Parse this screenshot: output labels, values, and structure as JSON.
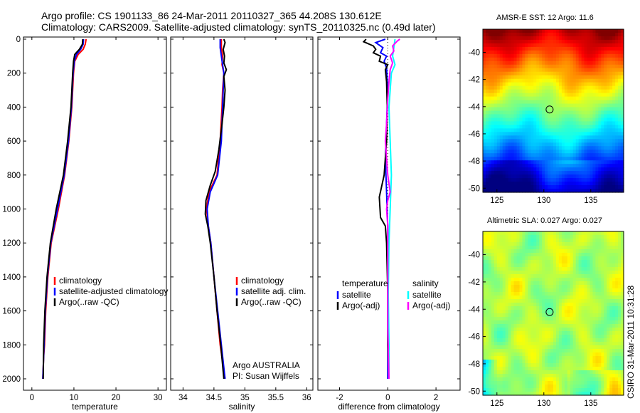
{
  "header": {
    "line1": "Argo profile: CS 1901133_86 24-Mar-2011 20110327_365 44.208S 130.612E",
    "line2": "Climatology: CARS2009. Satellite-adjusted climatology: synTS_20110325.nc (0.49d later)"
  },
  "timestamp": "CSIRO 31-Mar-2011 10:31:28",
  "colors": {
    "red": "#ff0000",
    "blue": "#0000ff",
    "black": "#000000",
    "cyan": "#00ffff",
    "magenta": "#ff00ff"
  },
  "chart_data": [
    {
      "type": "line",
      "panel": "temperature",
      "xlabel": "temperature",
      "xlim": [
        -2,
        32
      ],
      "ylim": [
        0,
        2100
      ],
      "y_reversed": true,
      "xticks": [
        "0",
        "10",
        "20",
        "30"
      ],
      "yticks": [
        "0",
        "200",
        "400",
        "600",
        "800",
        "1000",
        "1200",
        "1400",
        "1600",
        "1800",
        "2000"
      ],
      "legend": [
        "climatology",
        "satellite-adjusted climatology",
        "Argo(..raw -QC)"
      ],
      "series": [
        {
          "name": "climatology",
          "color": "red",
          "points": [
            [
              12.9,
              0
            ],
            [
              12.7,
              30
            ],
            [
              12.2,
              60
            ],
            [
              11.0,
              90
            ],
            [
              10.2,
              130
            ],
            [
              9.9,
              200
            ],
            [
              9.5,
              400
            ],
            [
              8.8,
              600
            ],
            [
              7.8,
              800
            ],
            [
              6.3,
              1000
            ],
            [
              4.6,
              1200
            ],
            [
              3.8,
              1400
            ],
            [
              3.3,
              1600
            ],
            [
              3.0,
              1800
            ],
            [
              2.8,
              1870
            ],
            [
              2.6,
              2000
            ]
          ]
        },
        {
          "name": "satellite-adjusted climatology",
          "color": "blue",
          "points": [
            [
              12.3,
              0
            ],
            [
              12.2,
              30
            ],
            [
              11.6,
              60
            ],
            [
              10.6,
              90
            ],
            [
              10.1,
              130
            ],
            [
              9.8,
              200
            ],
            [
              9.4,
              400
            ],
            [
              8.7,
              600
            ],
            [
              7.7,
              800
            ],
            [
              6.1,
              1000
            ],
            [
              4.5,
              1200
            ],
            [
              3.7,
              1400
            ],
            [
              3.2,
              1600
            ],
            [
              2.9,
              1800
            ],
            [
              2.6,
              2000
            ]
          ]
        },
        {
          "name": "Argo(..raw -QC)",
          "color": "black",
          "points": [
            [
              12.1,
              0
            ],
            [
              12.0,
              30
            ],
            [
              11.3,
              60
            ],
            [
              10.2,
              90
            ],
            [
              9.9,
              130
            ],
            [
              9.7,
              200
            ],
            [
              9.3,
              400
            ],
            [
              8.5,
              600
            ],
            [
              7.5,
              800
            ],
            [
              5.8,
              1000
            ],
            [
              4.4,
              1200
            ],
            [
              3.6,
              1400
            ],
            [
              3.1,
              1600
            ],
            [
              2.8,
              1800
            ],
            [
              2.7,
              2000
            ]
          ]
        }
      ]
    },
    {
      "type": "line",
      "panel": "salinity",
      "xlabel": "salinity",
      "xlim": [
        33.8,
        36.1
      ],
      "ylim": [
        0,
        2100
      ],
      "y_reversed": true,
      "xticks": [
        "34",
        "34.5",
        "35",
        "35.5",
        "36"
      ],
      "legend": [
        "climatology",
        "satellite adj. clim.",
        "Argo(..raw -QC)"
      ],
      "annotation": [
        "Argo AUSTRALIA",
        "PI: Susan Wijffels"
      ],
      "series": [
        {
          "name": "climatology",
          "color": "red",
          "points": [
            [
              34.62,
              0
            ],
            [
              34.62,
              50
            ],
            [
              34.64,
              100
            ],
            [
              34.63,
              150
            ],
            [
              34.66,
              200
            ],
            [
              34.64,
              300
            ],
            [
              34.63,
              400
            ],
            [
              34.6,
              600
            ],
            [
              34.55,
              800
            ],
            [
              34.42,
              900
            ],
            [
              34.38,
              1000
            ],
            [
              34.41,
              1100
            ],
            [
              34.45,
              1200
            ],
            [
              34.5,
              1400
            ],
            [
              34.55,
              1600
            ],
            [
              34.6,
              1800
            ],
            [
              34.68,
              2000
            ]
          ]
        },
        {
          "name": "satellite adj. clim.",
          "color": "blue",
          "points": [
            [
              34.6,
              0
            ],
            [
              34.6,
              50
            ],
            [
              34.62,
              100
            ],
            [
              34.64,
              150
            ],
            [
              34.66,
              200
            ],
            [
              34.65,
              300
            ],
            [
              34.64,
              400
            ],
            [
              34.62,
              600
            ],
            [
              34.56,
              800
            ],
            [
              34.44,
              900
            ],
            [
              34.39,
              1000
            ],
            [
              34.41,
              1100
            ],
            [
              34.45,
              1200
            ],
            [
              34.5,
              1400
            ],
            [
              34.56,
              1600
            ],
            [
              34.62,
              1800
            ],
            [
              34.68,
              2000
            ]
          ]
        },
        {
          "name": "Argo(..raw -QC)",
          "color": "black",
          "points": [
            [
              34.66,
              0
            ],
            [
              34.68,
              20
            ],
            [
              34.65,
              60
            ],
            [
              34.67,
              100
            ],
            [
              34.66,
              140
            ],
            [
              34.7,
              180
            ],
            [
              34.66,
              220
            ],
            [
              34.68,
              300
            ],
            [
              34.66,
              400
            ],
            [
              34.63,
              500
            ],
            [
              34.58,
              650
            ],
            [
              34.52,
              780
            ],
            [
              34.44,
              860
            ],
            [
              34.37,
              950
            ],
            [
              34.36,
              1030
            ],
            [
              34.4,
              1100
            ],
            [
              34.44,
              1200
            ],
            [
              34.5,
              1400
            ],
            [
              34.55,
              1600
            ],
            [
              34.61,
              1800
            ],
            [
              34.66,
              2000
            ]
          ]
        }
      ]
    },
    {
      "type": "line",
      "panel": "difference",
      "xlabel": "difference from climatology",
      "xlim": [
        -2.9,
        3.0
      ],
      "ylim": [
        0,
        2100
      ],
      "y_reversed": true,
      "xticks": [
        "-2",
        "0",
        "2"
      ],
      "legend_left_title": "temperature",
      "legend_right_title": "salinity",
      "legend_left": [
        "satellite",
        "Argo(-adj)"
      ],
      "legend_right": [
        "satellite",
        "Argo(-adj)"
      ],
      "series": [
        {
          "name": "temperature satellite",
          "color": "blue",
          "points": [
            [
              -0.1,
              0
            ],
            [
              -0.5,
              20
            ],
            [
              -0.2,
              50
            ],
            [
              -0.3,
              80
            ],
            [
              -0.05,
              100
            ],
            [
              -0.15,
              130
            ],
            [
              -0.05,
              170
            ],
            [
              0.0,
              300
            ],
            [
              -0.05,
              500
            ],
            [
              -0.1,
              700
            ],
            [
              -0.05,
              900
            ],
            [
              0.0,
              1100
            ],
            [
              0.0,
              1400
            ],
            [
              0.0,
              1700
            ],
            [
              0.0,
              2000
            ]
          ]
        },
        {
          "name": "temperature Argo(-adj)",
          "color": "black",
          "points": [
            [
              -0.9,
              0
            ],
            [
              -1.0,
              15
            ],
            [
              -0.6,
              40
            ],
            [
              -0.5,
              60
            ],
            [
              -0.6,
              80
            ],
            [
              -0.3,
              100
            ],
            [
              -0.35,
              130
            ],
            [
              0.0,
              150
            ],
            [
              -0.1,
              180
            ],
            [
              -0.05,
              250
            ],
            [
              -0.02,
              400
            ],
            [
              -0.05,
              600
            ],
            [
              -0.15,
              800
            ],
            [
              -0.35,
              930
            ],
            [
              -0.3,
              1050
            ],
            [
              -0.1,
              1100
            ],
            [
              -0.05,
              1200
            ],
            [
              0.0,
              1500
            ],
            [
              0.0,
              1800
            ],
            [
              0.05,
              2000
            ]
          ]
        },
        {
          "name": "salinity satellite",
          "color": "cyan",
          "points": [
            [
              0.3,
              0
            ],
            [
              0.25,
              50
            ],
            [
              0.2,
              100
            ],
            [
              0.3,
              150
            ],
            [
              0.15,
              200
            ],
            [
              0.1,
              300
            ],
            [
              0.05,
              400
            ],
            [
              0.1,
              600
            ],
            [
              0.15,
              800
            ],
            [
              0.1,
              1000
            ],
            [
              0.05,
              1200
            ],
            [
              0.02,
              1500
            ],
            [
              0.05,
              1800
            ],
            [
              0.05,
              2000
            ]
          ]
        },
        {
          "name": "salinity Argo(-adj)",
          "color": "magenta",
          "points": [
            [
              0.5,
              0
            ],
            [
              0.4,
              10
            ],
            [
              0.2,
              40
            ],
            [
              0.25,
              70
            ],
            [
              0.1,
              100
            ],
            [
              0.2,
              140
            ],
            [
              0.1,
              180
            ],
            [
              0.05,
              250
            ],
            [
              0.0,
              350
            ],
            [
              -0.05,
              500
            ],
            [
              -0.1,
              600
            ],
            [
              0.0,
              800
            ],
            [
              0.1,
              900
            ],
            [
              0.0,
              950
            ],
            [
              -0.05,
              1000
            ],
            [
              0.0,
              1100
            ],
            [
              0.0,
              1400
            ],
            [
              0.0,
              1700
            ],
            [
              0.05,
              2000
            ]
          ]
        }
      ]
    },
    {
      "type": "heatmap",
      "panel": "sst-map",
      "title": "AMSR-E SST: 12 Argo: 11.6",
      "xlim": [
        123.5,
        138.5
      ],
      "ylim": [
        -50.3,
        -38.3
      ],
      "xticks": [
        "125",
        "130",
        "135"
      ],
      "yticks": [
        "-40",
        "-42",
        "-44",
        "-46",
        "-48",
        "-50"
      ],
      "marker": {
        "lon": 130.612,
        "lat": -44.208
      }
    },
    {
      "type": "heatmap",
      "panel": "sla-map",
      "title": "Altimetric SLA: 0.027 Argo: 0.027",
      "xlim": [
        123.5,
        138.5
      ],
      "ylim": [
        -50.3,
        -38.3
      ],
      "xticks": [
        "125",
        "130",
        "135"
      ],
      "yticks": [
        "-40",
        "-42",
        "-44",
        "-46",
        "-48",
        "-50"
      ],
      "marker": {
        "lon": 130.612,
        "lat": -44.208
      }
    }
  ]
}
